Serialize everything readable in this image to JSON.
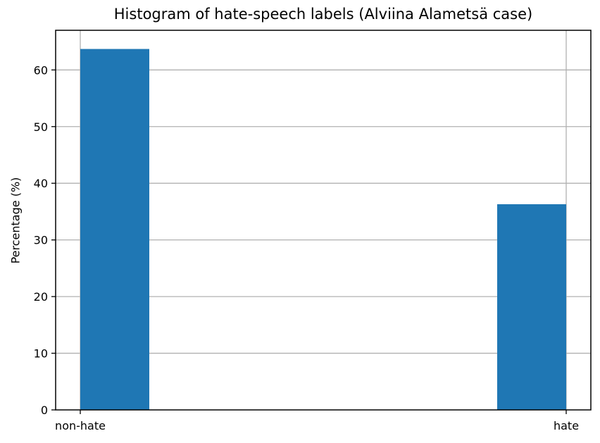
{
  "chart_data": {
    "type": "bar",
    "title": "Histogram of hate-speech labels (Alviina Alametsä case)",
    "xlabel": "",
    "ylabel": "Percentage (%)",
    "categories": [
      "non-hate",
      "hate"
    ],
    "values": [
      63.7,
      36.3
    ],
    "ylim": [
      0,
      67
    ],
    "yticks": [
      0,
      10,
      20,
      30,
      40,
      50,
      60
    ],
    "grid": true,
    "bar_color": "#1f77b4",
    "grid_color": "#b0b0b0",
    "axis_color": "#000000"
  }
}
